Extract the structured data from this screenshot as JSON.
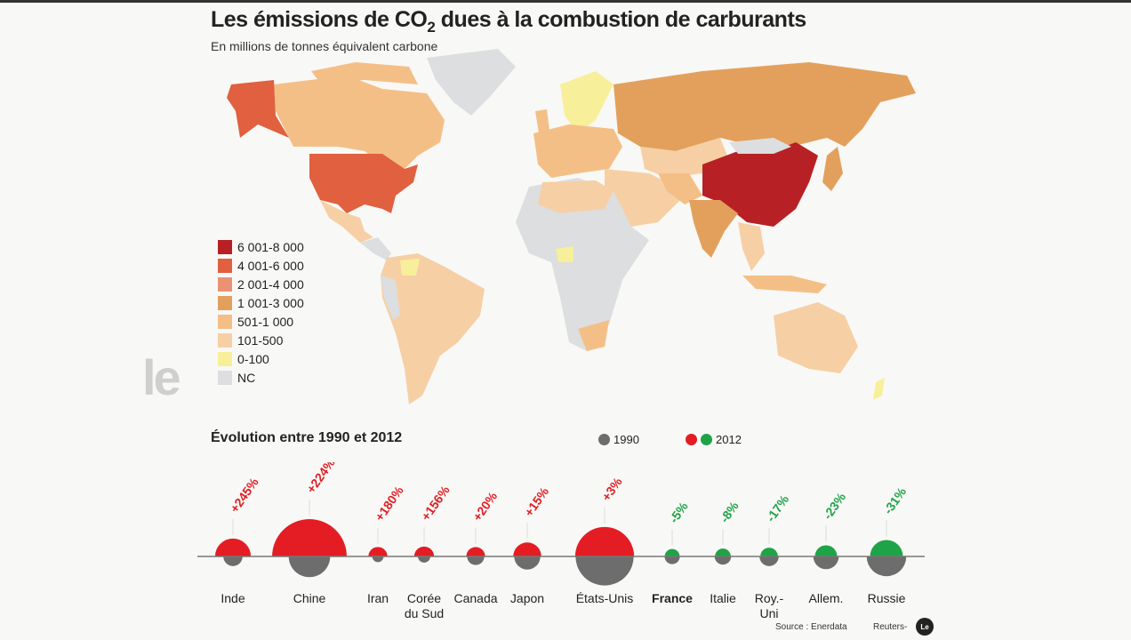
{
  "header": {
    "title_pre": "Les émissions de CO",
    "title_sub": "2",
    "title_post": " dues à la combustion de carburants",
    "subtitle": "En millions de tonnes équivalent carbone"
  },
  "watermark": "le",
  "map_legend": [
    {
      "label": "6 001-8 000",
      "color": "#b72025"
    },
    {
      "label": "4 001-6 000",
      "color": "#e0603f"
    },
    {
      "label": "2 001-4 000",
      "color": "#ec9274"
    },
    {
      "label": "1 001-3 000",
      "color": "#e3a05c"
    },
    {
      "label": "501-1 000",
      "color": "#f4bf86"
    },
    {
      "label": "101-500",
      "color": "#f7cfa5"
    },
    {
      "label": "0-100",
      "color": "#f8ef9a"
    },
    {
      "label": "NC",
      "color": "#dcdedf"
    }
  ],
  "evolution": {
    "title": "Évolution entre 1990 et 2012",
    "key_1990": "1990",
    "key_2012": "2012",
    "colors": {
      "1990": "#6d6d6d",
      "increase": "#e31d23",
      "decrease": "#1fa347"
    }
  },
  "chart_data": {
    "type": "bubble",
    "title": "Évolution entre 1990 et 2012",
    "legend": [
      "1990",
      "2012"
    ],
    "categories": [
      "Inde",
      "Chine",
      "Iran",
      "Corée du Sud",
      "Canada",
      "Japon",
      "États-Unis",
      "France",
      "Italie",
      "Roy.-Uni",
      "Allem.",
      "Russie"
    ],
    "change_labels": [
      "+245%",
      "+224%",
      "+180%",
      "+156%",
      "+20%",
      "+15%",
      "+3%",
      "-5%",
      "-8%",
      "-17%",
      "-23%",
      "-31%"
    ],
    "change_pct": [
      245,
      224,
      180,
      156,
      20,
      15,
      3,
      -5,
      -8,
      -17,
      -23,
      -31
    ],
    "emissions_2012_estimated": [
      1950,
      8500,
      550,
      600,
      540,
      1200,
      5300,
      340,
      380,
      470,
      760,
      1650
    ],
    "highlighted": "France"
  },
  "footer": {
    "source": "Source : Enerdata",
    "credit": "Reuters-",
    "credit_logo": "Le"
  }
}
